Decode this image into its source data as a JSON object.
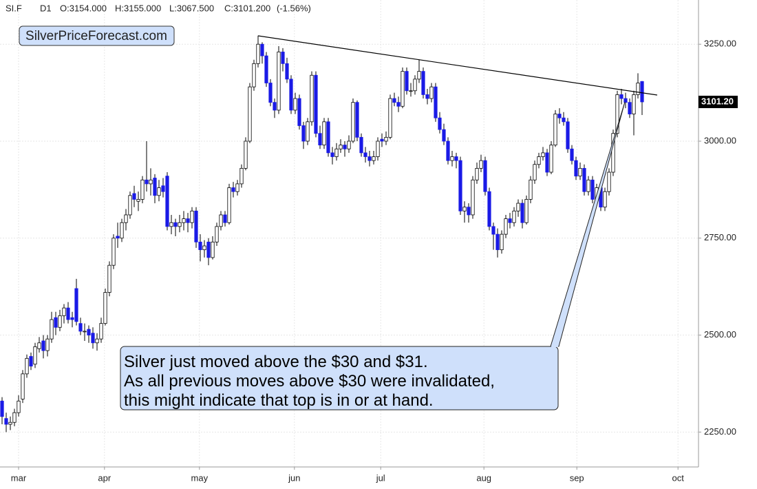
{
  "chart_data": {
    "type": "candlestick",
    "header": {
      "symbol": "SI.F",
      "timeframe": "D1",
      "open": "O:3154.000",
      "high": "H:3155.000",
      "low": "L:3067.500",
      "close": "C:3101.200",
      "change": "(-1.56%)"
    },
    "brand": "SilverPriceForecast.com",
    "annotation": [
      "Silver just moved above the $30 and $31.",
      "As all previous moves above $30 were invalidated,",
      "this might indicate that top is in or at hand."
    ],
    "up_color": "#ffffff",
    "down_color": "#1a1ae6",
    "ylim": [
      2160,
      3364
    ],
    "yticks": [
      {
        "value": 2250,
        "label": "2250.00"
      },
      {
        "value": 2500,
        "label": "2500.00"
      },
      {
        "value": 2750,
        "label": "2750.00"
      },
      {
        "value": 3000,
        "label": "3000.00"
      },
      {
        "value": 3250,
        "label": "3250.00"
      }
    ],
    "xticks": [
      {
        "value": 4,
        "label": "mar"
      },
      {
        "value": 24.8,
        "label": "apr"
      },
      {
        "value": 47.8,
        "label": "may"
      },
      {
        "value": 70.8,
        "label": "jun"
      },
      {
        "value": 91.7,
        "label": "jul"
      },
      {
        "value": 116.7,
        "label": "aug"
      },
      {
        "value": 139.2,
        "label": "sep"
      },
      {
        "value": 163.7,
        "label": "oct"
      }
    ],
    "grid": true,
    "last_price": {
      "value": 3101.2,
      "label": "3101.20"
    },
    "ohlc": [
      [
        2330,
        2340,
        2270,
        2290
      ],
      [
        2285,
        2300,
        2250,
        2270
      ],
      [
        2270,
        2290,
        2255,
        2275
      ],
      [
        2275,
        2310,
        2265,
        2300
      ],
      [
        2300,
        2345,
        2290,
        2330
      ],
      [
        2335,
        2410,
        2325,
        2400
      ],
      [
        2400,
        2450,
        2390,
        2440
      ],
      [
        2445,
        2455,
        2410,
        2420
      ],
      [
        2425,
        2480,
        2415,
        2470
      ],
      [
        2465,
        2495,
        2455,
        2480
      ],
      [
        2485,
        2500,
        2440,
        2460
      ],
      [
        2460,
        2500,
        2445,
        2490
      ],
      [
        2490,
        2560,
        2480,
        2540
      ],
      [
        2545,
        2560,
        2500,
        2520
      ],
      [
        2520,
        2565,
        2510,
        2550
      ],
      [
        2550,
        2580,
        2530,
        2570
      ],
      [
        2570,
        2585,
        2530,
        2540
      ],
      [
        2545,
        2560,
        2520,
        2540
      ],
      [
        2620,
        2645,
        2525,
        2535
      ],
      [
        2530,
        2545,
        2500,
        2510
      ],
      [
        2510,
        2530,
        2485,
        2510
      ],
      [
        2515,
        2525,
        2480,
        2500
      ],
      [
        2505,
        2520,
        2465,
        2480
      ],
      [
        2480,
        2505,
        2460,
        2490
      ],
      [
        2490,
        2545,
        2480,
        2530
      ],
      [
        2530,
        2620,
        2525,
        2610
      ],
      [
        2610,
        2690,
        2600,
        2680
      ],
      [
        2680,
        2760,
        2670,
        2750
      ],
      [
        2755,
        2790,
        2725,
        2750
      ],
      [
        2750,
        2800,
        2740,
        2790
      ],
      [
        2790,
        2825,
        2770,
        2810
      ],
      [
        2810,
        2870,
        2800,
        2860
      ],
      [
        2865,
        2885,
        2830,
        2850
      ],
      [
        2845,
        2870,
        2820,
        2850
      ],
      [
        2850,
        2910,
        2840,
        2900
      ],
      [
        2900,
        3000,
        2870,
        2890
      ],
      [
        2890,
        2930,
        2860,
        2900
      ],
      [
        2905,
        2915,
        2840,
        2860
      ],
      [
        2860,
        2900,
        2845,
        2880
      ],
      [
        2885,
        2905,
        2855,
        2870
      ],
      [
        2910,
        2920,
        2770,
        2780
      ],
      [
        2780,
        2810,
        2760,
        2790
      ],
      [
        2790,
        2800,
        2755,
        2780
      ],
      [
        2780,
        2810,
        2765,
        2790
      ],
      [
        2790,
        2820,
        2770,
        2800
      ],
      [
        2800,
        2815,
        2765,
        2790
      ],
      [
        2790,
        2830,
        2775,
        2820
      ],
      [
        2820,
        2830,
        2725,
        2740
      ],
      [
        2740,
        2760,
        2690,
        2720
      ],
      [
        2720,
        2745,
        2700,
        2730
      ],
      [
        2740,
        2750,
        2680,
        2700
      ],
      [
        2700,
        2755,
        2695,
        2740
      ],
      [
        2740,
        2790,
        2730,
        2780
      ],
      [
        2780,
        2820,
        2770,
        2810
      ],
      [
        2810,
        2820,
        2780,
        2790
      ],
      [
        2790,
        2890,
        2785,
        2880
      ],
      [
        2880,
        2895,
        2855,
        2870
      ],
      [
        2870,
        2900,
        2860,
        2890
      ],
      [
        2890,
        2940,
        2880,
        2930
      ],
      [
        2930,
        3010,
        2925,
        3000
      ],
      [
        3000,
        3150,
        2995,
        3140
      ],
      [
        3140,
        3210,
        3130,
        3200
      ],
      [
        3200,
        3272,
        3190,
        3250
      ],
      [
        3250,
        3255,
        3200,
        3220
      ],
      [
        3220,
        3230,
        3140,
        3150
      ],
      [
        3150,
        3160,
        3090,
        3100
      ],
      [
        3100,
        3110,
        3060,
        3080
      ],
      [
        3080,
        3245,
        3070,
        3230
      ],
      [
        3230,
        3240,
        3180,
        3200
      ],
      [
        3200,
        3215,
        3150,
        3160
      ],
      [
        3160,
        3170,
        3070,
        3080
      ],
      [
        3080,
        3125,
        3070,
        3110
      ],
      [
        3110,
        3120,
        3030,
        3040
      ],
      [
        3040,
        3050,
        2980,
        3000
      ],
      [
        3000,
        3060,
        2990,
        3050
      ],
      [
        3050,
        3180,
        3040,
        3170
      ],
      [
        3170,
        3180,
        3010,
        3020
      ],
      [
        3020,
        3040,
        2980,
        2990
      ],
      [
        2990,
        3060,
        2980,
        3050
      ],
      [
        3050,
        3060,
        2960,
        2970
      ],
      [
        2970,
        2985,
        2940,
        2960
      ],
      [
        2960,
        2995,
        2950,
        2980
      ],
      [
        2980,
        3005,
        2970,
        2990
      ],
      [
        2990,
        3000,
        2960,
        2980
      ],
      [
        2980,
        3015,
        2970,
        3000
      ],
      [
        3000,
        3110,
        2995,
        3100
      ],
      [
        3100,
        3105,
        3000,
        3010
      ],
      [
        3010,
        3020,
        2960,
        2970
      ],
      [
        2970,
        2985,
        2945,
        2960
      ],
      [
        2960,
        2975,
        2935,
        2950
      ],
      [
        2950,
        2975,
        2940,
        2960
      ],
      [
        2960,
        3010,
        2950,
        3000
      ],
      [
        3005,
        3020,
        2985,
        3000
      ],
      [
        3000,
        3025,
        2990,
        3010
      ],
      [
        3010,
        3120,
        3005,
        3110
      ],
      [
        3110,
        3125,
        3090,
        3100
      ],
      [
        3100,
        3115,
        3075,
        3090
      ],
      [
        3090,
        3190,
        3085,
        3180
      ],
      [
        3180,
        3190,
        3120,
        3130
      ],
      [
        3130,
        3150,
        3115,
        3130
      ],
      [
        3130,
        3170,
        3120,
        3160
      ],
      [
        3160,
        3210,
        3150,
        3180
      ],
      [
        3180,
        3190,
        3110,
        3120
      ],
      [
        3120,
        3135,
        3095,
        3110
      ],
      [
        3110,
        3150,
        3100,
        3140
      ],
      [
        3140,
        3150,
        3050,
        3060
      ],
      [
        3060,
        3075,
        3020,
        3030
      ],
      [
        3030,
        3045,
        2990,
        3000
      ],
      [
        3000,
        3010,
        2940,
        2950
      ],
      [
        2950,
        2975,
        2935,
        2960
      ],
      [
        2960,
        2970,
        2930,
        2950
      ],
      [
        2950,
        2960,
        2810,
        2820
      ],
      [
        2820,
        2845,
        2790,
        2830
      ],
      [
        2830,
        2840,
        2790,
        2810
      ],
      [
        2810,
        2910,
        2800,
        2900
      ],
      [
        2900,
        2945,
        2890,
        2930
      ],
      [
        2930,
        2965,
        2920,
        2950
      ],
      [
        2950,
        2960,
        2860,
        2870
      ],
      [
        2870,
        2880,
        2770,
        2780
      ],
      [
        2780,
        2790,
        2720,
        2760
      ],
      [
        2760,
        2775,
        2700,
        2720
      ],
      [
        2720,
        2770,
        2710,
        2760
      ],
      [
        2760,
        2810,
        2750,
        2800
      ],
      [
        2800,
        2815,
        2775,
        2790
      ],
      [
        2790,
        2830,
        2780,
        2820
      ],
      [
        2820,
        2850,
        2805,
        2840
      ],
      [
        2840,
        2850,
        2775,
        2790
      ],
      [
        2790,
        2860,
        2785,
        2850
      ],
      [
        2850,
        2910,
        2840,
        2900
      ],
      [
        2900,
        2950,
        2890,
        2940
      ],
      [
        2940,
        2970,
        2930,
        2960
      ],
      [
        2960,
        2985,
        2950,
        2970
      ],
      [
        2970,
        2980,
        2910,
        2920
      ],
      [
        2920,
        3000,
        2915,
        2990
      ],
      [
        2990,
        3080,
        2985,
        3070
      ],
      [
        3070,
        3085,
        3045,
        3060
      ],
      [
        3060,
        3075,
        3040,
        3050
      ],
      [
        3050,
        3060,
        2970,
        2980
      ],
      [
        2980,
        2990,
        2940,
        2950
      ],
      [
        2950,
        2960,
        2900,
        2910
      ],
      [
        2910,
        2945,
        2900,
        2930
      ],
      [
        2930,
        2940,
        2860,
        2870
      ],
      [
        2870,
        2910,
        2860,
        2900
      ],
      [
        2900,
        2910,
        2840,
        2850
      ],
      [
        2850,
        2890,
        2840,
        2880
      ],
      [
        2880,
        2890,
        2820,
        2830
      ],
      [
        2830,
        2880,
        2820,
        2870
      ],
      [
        2870,
        2930,
        2860,
        2920
      ],
      [
        2920,
        3030,
        2910,
        3020
      ],
      [
        3020,
        3130,
        3010,
        3120
      ],
      [
        3120,
        3135,
        3095,
        3110
      ],
      [
        3110,
        3125,
        3085,
        3100
      ],
      [
        3100,
        3110,
        3060,
        3070
      ],
      [
        3070,
        3130,
        3015,
        3120
      ],
      [
        3120,
        3175,
        3110,
        3150
      ],
      [
        3154,
        3155,
        3067.5,
        3101.2
      ]
    ]
  }
}
